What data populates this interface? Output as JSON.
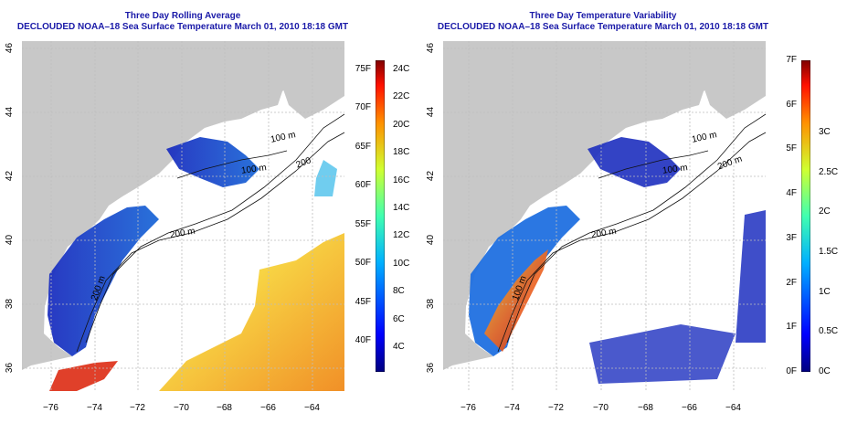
{
  "colors": {
    "land": "#c8c8c8",
    "ocean_empty": "#ffffff",
    "title": "#1a1aa8",
    "contour": "#111111",
    "grid": "#bdbdbd"
  },
  "panels": [
    {
      "title_line1": "Three Day Rolling Average",
      "title_line2": "DECLOUDED NOAA–18 Sea Surface Temperature March 01, 2010 18:18 GMT",
      "contour_labels": [
        "100 m",
        "100 m",
        "200",
        "200 m",
        "200 m"
      ],
      "colorbar": {
        "left_labels": [
          "75F",
          "70F",
          "65F",
          "60F",
          "55F",
          "50F",
          "45F",
          "40F"
        ],
        "right_labels": [
          "24C",
          "22C",
          "20C",
          "18C",
          "16C",
          "14C",
          "12C",
          "10C",
          "8C",
          "6C",
          "4C"
        ],
        "colormap": "jet"
      }
    },
    {
      "title_line1": "Three Day Temperature Variability",
      "title_line2": "DECLOUDED NOAA–18 Sea Surface Temperature March 01, 2010 18:18 GMT",
      "contour_labels": [
        "100 m",
        "100 m",
        "200 m",
        "200 m",
        "100 m"
      ],
      "colorbar": {
        "left_labels": [
          "7F",
          "6F",
          "5F",
          "4F",
          "3F",
          "2F",
          "1F",
          "0F"
        ],
        "right_labels": [
          "3C",
          "2.5C",
          "2C",
          "1.5C",
          "1C",
          "0.5C",
          "0C"
        ],
        "colormap": "jet"
      }
    }
  ],
  "axes": {
    "x_ticks": [
      "−76",
      "−74",
      "−72",
      "−70",
      "−68",
      "−66",
      "−64"
    ],
    "y_ticks": [
      "46",
      "44",
      "42",
      "40",
      "38",
      "36"
    ]
  }
}
